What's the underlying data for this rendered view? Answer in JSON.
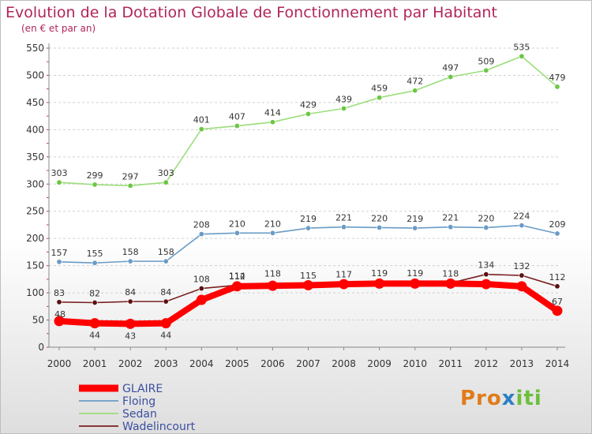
{
  "chart_data": {
    "type": "line",
    "title": "Evolution de la Dotation Globale de Fonctionnement par Habitant",
    "subtitle": "(en € et par an)",
    "xlabel": "",
    "ylabel": "",
    "ylim": [
      0,
      550
    ],
    "yticks": [
      0,
      50,
      100,
      150,
      200,
      250,
      300,
      350,
      400,
      450,
      500,
      550
    ],
    "categories": [
      "2000",
      "2001",
      "2002",
      "2003",
      "2004",
      "2005",
      "2006",
      "2007",
      "2008",
      "2009",
      "2010",
      "2011",
      "2012",
      "2013",
      "2014"
    ],
    "legend_position": "bottom-left",
    "series": [
      {
        "name": "GLAIRE",
        "color": "#ff0000",
        "marker": "#ff0000",
        "values": [
          48,
          44,
          43,
          44,
          87,
          112,
          113,
          114,
          116,
          117,
          117,
          117,
          116,
          112,
          67
        ],
        "labels": [
          "48",
          "44",
          "43",
          "44",
          "",
          "112",
          "",
          "",
          "",
          "",
          "",
          "",
          "",
          "",
          "67"
        ]
      },
      {
        "name": "Floing",
        "color": "#6a9bc6",
        "marker": "#6a9bc6",
        "values": [
          157,
          155,
          158,
          158,
          208,
          210,
          210,
          219,
          221,
          220,
          219,
          221,
          220,
          224,
          209
        ],
        "labels": [
          "157",
          "155",
          "158",
          "158",
          "208",
          "210",
          "210",
          "219",
          "221",
          "220",
          "219",
          "221",
          "220",
          "224",
          "209"
        ]
      },
      {
        "name": "Sedan",
        "color": "#9ade7a",
        "marker": "#6cc644",
        "values": [
          303,
          299,
          297,
          303,
          401,
          407,
          414,
          429,
          439,
          459,
          472,
          497,
          509,
          535,
          479
        ],
        "labels": [
          "303",
          "299",
          "297",
          "303",
          "401",
          "407",
          "414",
          "429",
          "439",
          "459",
          "472",
          "497",
          "509",
          "535",
          "479"
        ]
      },
      {
        "name": "Wadelincourt",
        "color": "#7a2020",
        "marker": "#5a1010",
        "values": [
          83,
          82,
          84,
          84,
          108,
          114,
          118,
          115,
          117,
          119,
          119,
          118,
          134,
          132,
          112
        ],
        "labels": [
          "83",
          "82",
          "84",
          "84",
          "108",
          "114",
          "118",
          "115",
          "117",
          "119",
          "119",
          "118",
          "134",
          "132",
          "112"
        ]
      }
    ]
  },
  "brand": {
    "p1": "Pro",
    "p2": "x",
    "p3": "iti"
  }
}
